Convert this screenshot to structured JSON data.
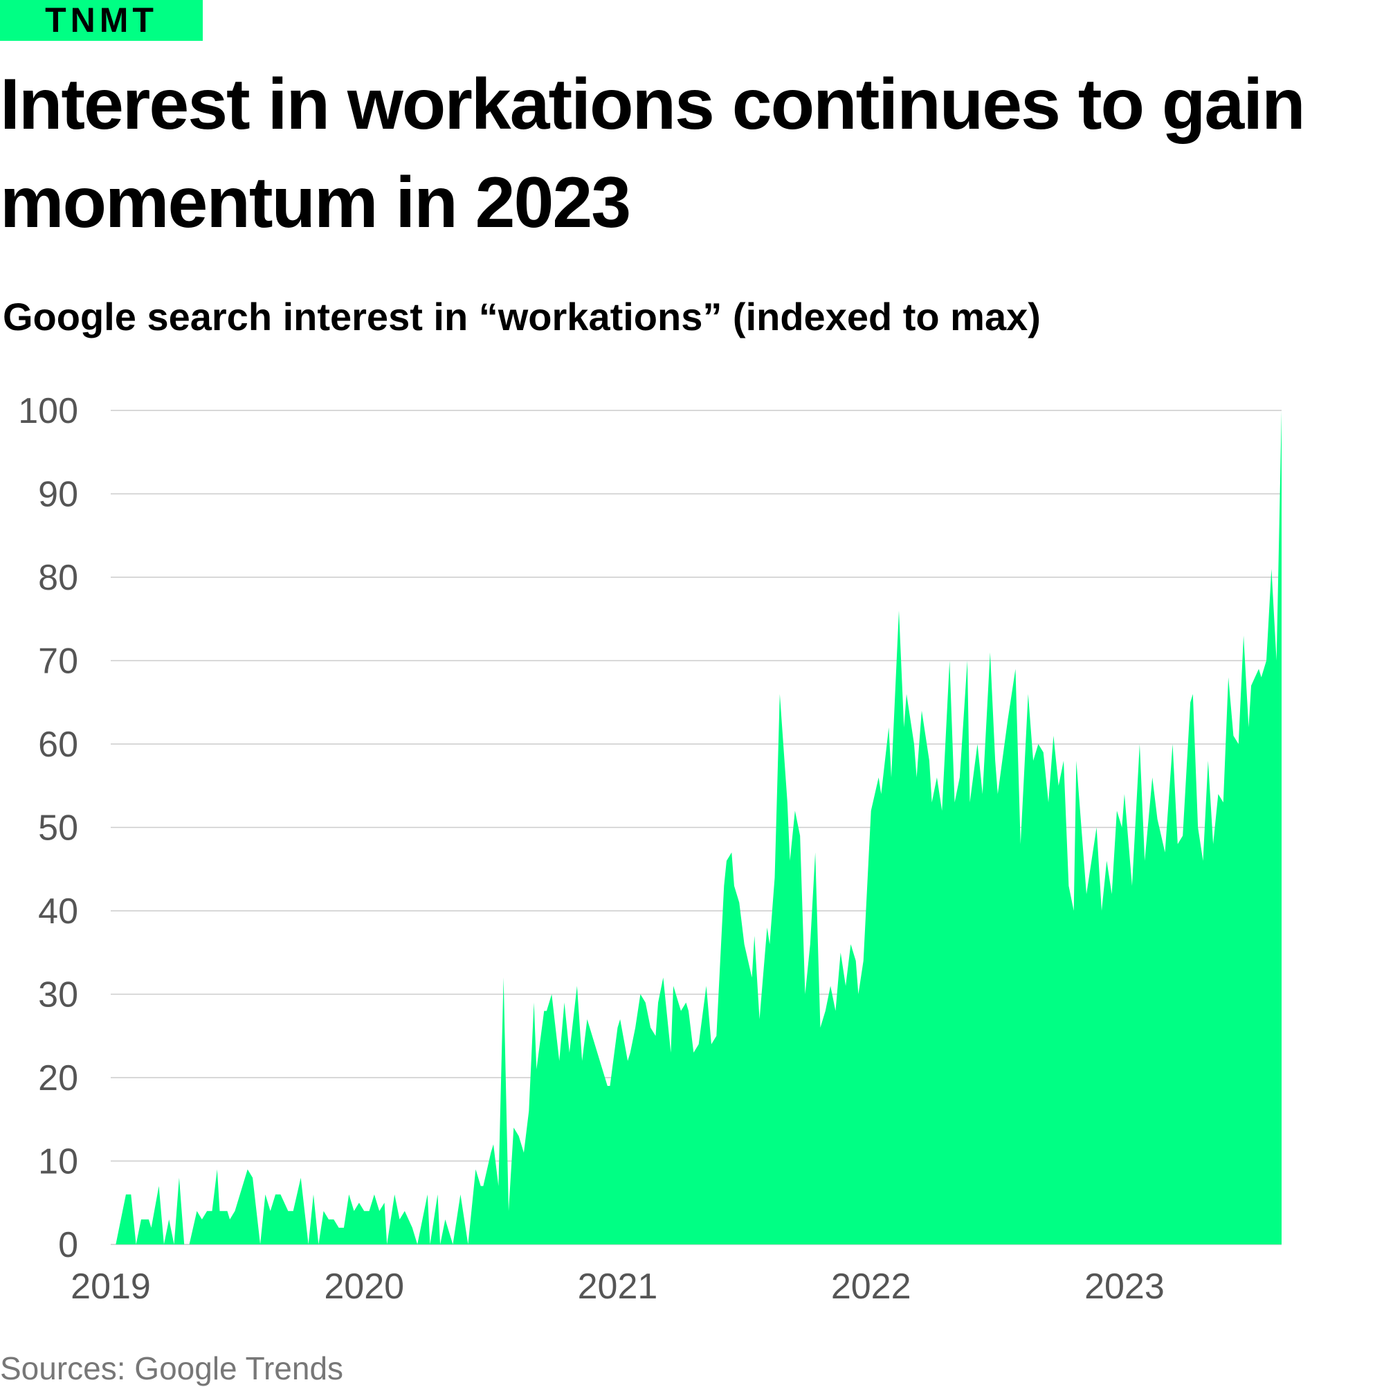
{
  "logo": "TNMT",
  "chart_data": {
    "type": "area",
    "title": "Interest in workations continues to gain momentum in 2023",
    "subtitle": "Google search interest in “workations” (indexed to max)",
    "source": "Sources: Google Trends",
    "color": "#00ff84",
    "grid": true,
    "xlim": [
      2019,
      2023.62
    ],
    "xticks": [
      2019,
      2020,
      2021,
      2022,
      2023
    ],
    "ylim": [
      0,
      100
    ],
    "yticks": [
      0,
      10,
      20,
      30,
      40,
      50,
      60,
      70,
      80,
      90,
      100
    ],
    "x": [
      2019.02,
      2019.06,
      2019.08,
      2019.1,
      2019.12,
      2019.15,
      2019.16,
      2019.19,
      2019.21,
      2019.23,
      2019.25,
      2019.27,
      2019.29,
      2019.31,
      2019.34,
      2019.36,
      2019.38,
      2019.4,
      2019.42,
      2019.43,
      2019.46,
      2019.47,
      2019.49,
      2019.52,
      2019.54,
      2019.56,
      2019.59,
      2019.61,
      2019.63,
      2019.65,
      2019.67,
      2019.7,
      2019.72,
      2019.75,
      2019.78,
      2019.8,
      2019.82,
      2019.84,
      2019.86,
      2019.88,
      2019.9,
      2019.92,
      2019.94,
      2019.96,
      2019.98,
      2020.0,
      2020.02,
      2020.04,
      2020.06,
      2020.08,
      2020.09,
      2020.12,
      2020.14,
      2020.16,
      2020.19,
      2020.21,
      2020.25,
      2020.26,
      2020.29,
      2020.3,
      2020.32,
      2020.35,
      2020.38,
      2020.41,
      2020.44,
      2020.46,
      2020.47,
      2020.5,
      2020.51,
      2020.53,
      2020.55,
      2020.57,
      2020.59,
      2020.61,
      2020.63,
      2020.65,
      2020.67,
      2020.68,
      2020.71,
      2020.72,
      2020.74,
      2020.77,
      2020.79,
      2020.81,
      2020.84,
      2020.86,
      2020.88,
      2020.96,
      2020.97,
      2021.0,
      2021.01,
      2021.04,
      2021.05,
      2021.07,
      2021.09,
      2021.11,
      2021.13,
      2021.15,
      2021.16,
      2021.18,
      2021.21,
      2021.22,
      2021.25,
      2021.27,
      2021.28,
      2021.3,
      2021.32,
      2021.35,
      2021.37,
      2021.39,
      2021.42,
      2021.43,
      2021.45,
      2021.46,
      2021.48,
      2021.5,
      2021.53,
      2021.54,
      2021.56,
      2021.59,
      2021.6,
      2021.62,
      2021.64,
      2021.67,
      2021.68,
      2021.7,
      2021.72,
      2021.74,
      2021.76,
      2021.78,
      2021.8,
      2021.82,
      2021.84,
      2021.86,
      2021.88,
      2021.9,
      2021.92,
      2021.94,
      2021.95,
      2021.97,
      2022.0,
      2022.03,
      2022.04,
      2022.07,
      2022.08,
      2022.11,
      2022.13,
      2022.14,
      2022.17,
      2022.18,
      2022.2,
      2022.23,
      2022.24,
      2022.26,
      2022.28,
      2022.31,
      2022.33,
      2022.35,
      2022.38,
      2022.39,
      2022.42,
      2022.44,
      2022.47,
      2022.49,
      2022.5,
      2022.54,
      2022.57,
      2022.59,
      2022.62,
      2022.64,
      2022.66,
      2022.68,
      2022.7,
      2022.72,
      2022.74,
      2022.76,
      2022.78,
      2022.8,
      2022.81,
      2022.84,
      2022.85,
      2022.89,
      2022.91,
      2022.93,
      2022.95,
      2022.97,
      2022.99,
      2023.0,
      2023.03,
      2023.06,
      2023.08,
      2023.11,
      2023.13,
      2023.16,
      2023.19,
      2023.21,
      2023.23,
      2023.26,
      2023.27,
      2023.29,
      2023.31,
      2023.33,
      2023.35,
      2023.37,
      2023.39,
      2023.41,
      2023.43,
      2023.45,
      2023.47,
      2023.49,
      2023.5,
      2023.53,
      2023.54,
      2023.56,
      2023.58,
      2023.6,
      2023.62
    ],
    "values": [
      0,
      6,
      6,
      0,
      3,
      3,
      2,
      7,
      0,
      3,
      0,
      8,
      0,
      0,
      4,
      3,
      4,
      4,
      9,
      4,
      4,
      3,
      4,
      7,
      9,
      8,
      0,
      6,
      4,
      6,
      6,
      4,
      4,
      8,
      0,
      6,
      0,
      4,
      3,
      3,
      2,
      2,
      6,
      4,
      5,
      4,
      4,
      6,
      4,
      5,
      0,
      6,
      3,
      4,
      2,
      0,
      6,
      0,
      6,
      0,
      3,
      0,
      6,
      0,
      9,
      7,
      7,
      11,
      12,
      7,
      32,
      4,
      14,
      13,
      11,
      16,
      29,
      21,
      28,
      28,
      30,
      22,
      29,
      23,
      31,
      22,
      27,
      19,
      19,
      26,
      27,
      22,
      23,
      26,
      30,
      29,
      26,
      25,
      29,
      32,
      23,
      31,
      28,
      29,
      28,
      23,
      24,
      31,
      24,
      25,
      43,
      46,
      47,
      43,
      41,
      36,
      32,
      37,
      27,
      38,
      36,
      44,
      66,
      53,
      46,
      52,
      49,
      30,
      36,
      47,
      26,
      28,
      31,
      28,
      35,
      31,
      36,
      34,
      30,
      34,
      52,
      56,
      54,
      62,
      56,
      76,
      62,
      66,
      60,
      56,
      64,
      58,
      53,
      56,
      52,
      70,
      53,
      56,
      70,
      53,
      60,
      54,
      71,
      58,
      54,
      63,
      69,
      48,
      66,
      58,
      60,
      59,
      53,
      61,
      55,
      58,
      43,
      40,
      58,
      46,
      42,
      50,
      40,
      46,
      42,
      52,
      50,
      54,
      43,
      60,
      46,
      56,
      51,
      47,
      60,
      48,
      49,
      65,
      66,
      50,
      46,
      58,
      48,
      54,
      53,
      68,
      61,
      60,
      73,
      62,
      67,
      69,
      68,
      70,
      81,
      70,
      100
    ]
  }
}
